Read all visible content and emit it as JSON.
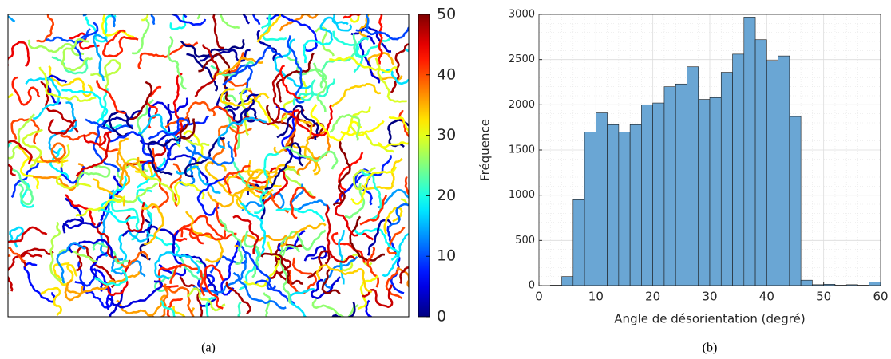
{
  "chart_data": [
    {
      "type": "map",
      "caption": "(a)",
      "colorbar": {
        "lim": [
          0,
          50
        ],
        "ticks": [
          0,
          10,
          20,
          30,
          40,
          50
        ],
        "colormap": "jet"
      }
    },
    {
      "type": "histogram",
      "caption": "(b)",
      "xlabel": "Angle de désorientation (degré)",
      "ylabel": "Fréquence",
      "bins": [
        0,
        2,
        4,
        6,
        8,
        10,
        12,
        14,
        16,
        18,
        20,
        22,
        24,
        26,
        28,
        30,
        32,
        34,
        36,
        38,
        40,
        42,
        44,
        46,
        48,
        50,
        52,
        54,
        56,
        58,
        60
      ],
      "values": [
        0,
        5,
        100,
        950,
        1700,
        1910,
        1780,
        1700,
        1780,
        2000,
        2020,
        2200,
        2230,
        2420,
        2060,
        2080,
        2360,
        2560,
        2970,
        2720,
        2490,
        2540,
        1870,
        60,
        10,
        15,
        5,
        10,
        5,
        40
      ],
      "color": "#6aa6d4",
      "xlim": [
        0,
        60
      ],
      "xticks": [
        0,
        10,
        20,
        30,
        40,
        50,
        60
      ],
      "ylim": [
        0,
        3000
      ],
      "yticks": [
        0,
        500,
        1000,
        1500,
        2000,
        2500,
        3000
      ],
      "grid": true,
      "minor_grid": true
    }
  ]
}
